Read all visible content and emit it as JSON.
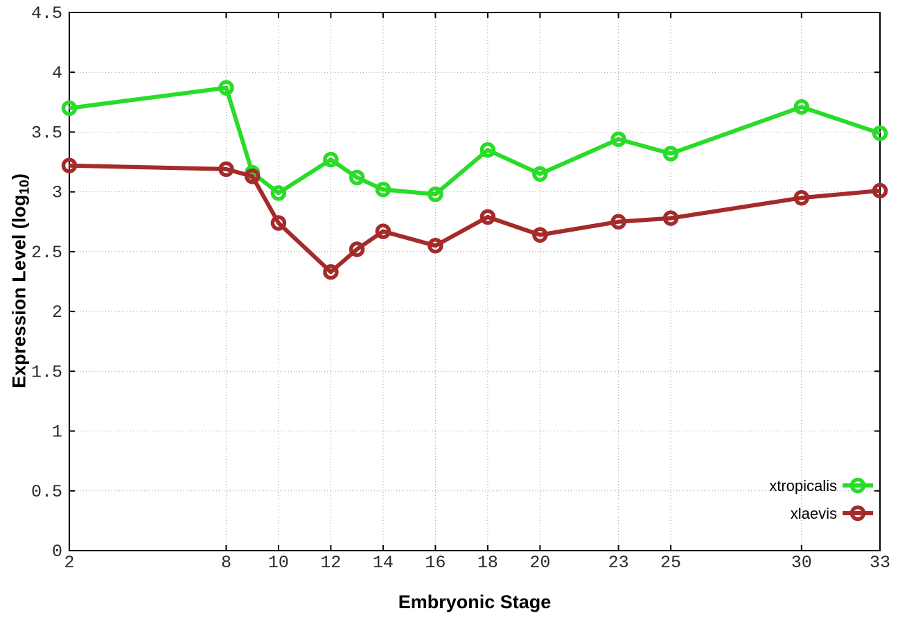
{
  "chart_data": {
    "type": "line",
    "title": "",
    "xlabel": "Embryonic Stage",
    "ylabel": "Expression Level (log10)",
    "ylabel_parts": {
      "main": "Expression Level (log",
      "sub": "10",
      "end": ")"
    },
    "xlim": [
      2,
      33
    ],
    "ylim": [
      0,
      4.5
    ],
    "x_ticks": [
      2,
      8,
      10,
      12,
      14,
      16,
      18,
      20,
      23,
      25,
      30,
      33
    ],
    "y_ticks": [
      0,
      0.5,
      1,
      1.5,
      2,
      2.5,
      3,
      3.5,
      4,
      4.5
    ],
    "grid": true,
    "legend_position": "bottom-right",
    "x": [
      2,
      8,
      9,
      10,
      12,
      13,
      14,
      16,
      18,
      20,
      23,
      25,
      30,
      33
    ],
    "series": [
      {
        "name": "xtropicalis",
        "color": "#28dc28",
        "values": [
          3.7,
          3.87,
          3.16,
          2.99,
          3.27,
          3.12,
          3.02,
          2.98,
          3.35,
          3.15,
          3.44,
          3.32,
          3.71,
          3.49
        ]
      },
      {
        "name": "xlaevis",
        "color": "#a52a2a",
        "values": [
          3.22,
          3.19,
          3.13,
          2.74,
          2.33,
          2.52,
          2.67,
          2.55,
          2.79,
          2.64,
          2.75,
          2.78,
          2.95,
          3.01
        ]
      }
    ],
    "style": {
      "border_color": "#000000",
      "grid_color": "#9e9e9e",
      "tick_label_color": "#2b2b2b",
      "line_width": 6,
      "marker_radius": 8.5,
      "marker_stroke": 5.5
    }
  }
}
